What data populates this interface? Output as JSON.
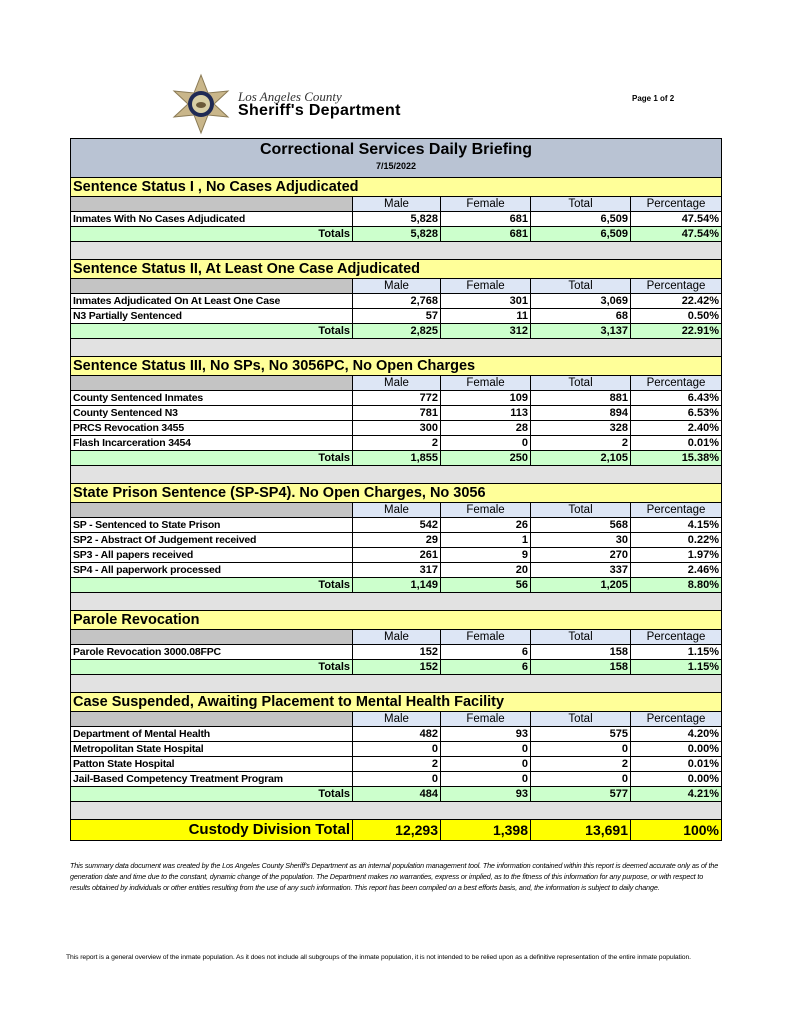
{
  "header": {
    "logo_county": "Los Angeles County",
    "logo_department": "Sheriff's Department",
    "page_indicator": "Page 1 of 2"
  },
  "report": {
    "title": "Correctional Services Daily Briefing",
    "date": "7/15/2022",
    "columns": [
      "Male",
      "Female",
      "Total",
      "Percentage"
    ],
    "totals_label": "Totals",
    "sections": [
      {
        "title": "Sentence Status I , No Cases Adjudicated",
        "rows": [
          [
            "Inmates With No Cases Adjudicated",
            "5,828",
            "681",
            "6,509",
            "47.54%"
          ]
        ],
        "totals": [
          "5,828",
          "681",
          "6,509",
          "47.54%"
        ]
      },
      {
        "title": "Sentence Status II, At Least One Case Adjudicated",
        "rows": [
          [
            "Inmates Adjudicated On At Least One Case",
            "2,768",
            "301",
            "3,069",
            "22.42%"
          ],
          [
            "N3 Partially Sentenced",
            "57",
            "11",
            "68",
            "0.50%"
          ]
        ],
        "totals": [
          "2,825",
          "312",
          "3,137",
          "22.91%"
        ]
      },
      {
        "title": "Sentence Status III, No SPs, No 3056PC, No Open Charges",
        "rows": [
          [
            "County Sentenced Inmates",
            "772",
            "109",
            "881",
            "6.43%"
          ],
          [
            "County Sentenced N3",
            "781",
            "113",
            "894",
            "6.53%"
          ],
          [
            "PRCS Revocation 3455",
            "300",
            "28",
            "328",
            "2.40%"
          ],
          [
            "Flash Incarceration 3454",
            "2",
            "0",
            "2",
            "0.01%"
          ]
        ],
        "totals": [
          "1,855",
          "250",
          "2,105",
          "15.38%"
        ]
      },
      {
        "title": "State Prison Sentence (SP-SP4). No Open Charges, No 3056",
        "rows": [
          [
            "SP - Sentenced to State Prison",
            "542",
            "26",
            "568",
            "4.15%"
          ],
          [
            "SP2 - Abstract Of Judgement received",
            "29",
            "1",
            "30",
            "0.22%"
          ],
          [
            "SP3 - All papers received",
            "261",
            "9",
            "270",
            "1.97%"
          ],
          [
            "SP4 - All paperwork processed",
            "317",
            "20",
            "337",
            "2.46%"
          ]
        ],
        "totals": [
          "1,149",
          "56",
          "1,205",
          "8.80%"
        ]
      },
      {
        "title": "Parole Revocation",
        "rows": [
          [
            "Parole Revocation 3000.08FPC",
            "152",
            "6",
            "158",
            "1.15%"
          ]
        ],
        "totals": [
          "152",
          "6",
          "158",
          "1.15%"
        ]
      },
      {
        "title": "Case Suspended, Awaiting Placement to Mental Health Facility",
        "rows": [
          [
            "Department of Mental Health",
            "482",
            "93",
            "575",
            "4.20%"
          ],
          [
            "Metropolitan State Hospital",
            "0",
            "0",
            "0",
            "0.00%"
          ],
          [
            "Patton State Hospital",
            "2",
            "0",
            "2",
            "0.01%"
          ],
          [
            "Jail-Based Competency Treatment Program",
            "0",
            "0",
            "0",
            "0.00%"
          ]
        ],
        "totals": [
          "484",
          "93",
          "577",
          "4.21%"
        ]
      }
    ],
    "grand_total": {
      "label": "Custody Division Total",
      "values": [
        "12,293",
        "1,398",
        "13,691",
        "100%"
      ]
    }
  },
  "disclaimer": "This summary data document was created by the Los Angeles County Sheriff's Department as an internal population management tool.  The information contained within this report is deemed accurate only as of the generation date and time due to the constant, dynamic change of the population.  The Department makes no warranties, express or implied, as to the fitness of this information for any purpose, or with respect to results obtained by individuals or other entities resulting from the use of any such information.  This report has been compiled on a best efforts basis, and, the information is subject to daily change.",
  "note": "This report is a general overview of the inmate population.  As it does not include all subgroups of the inmate population, it is not intended to be relied upon as a definitive representation of the entire inmate population.",
  "colors": {
    "title_bg": "#b9c3d3",
    "section_bg": "#ffff99",
    "totals_bg": "#ccffcc",
    "grand_bg": "#ffff00",
    "spacer_bg": "#e2e2e2"
  }
}
